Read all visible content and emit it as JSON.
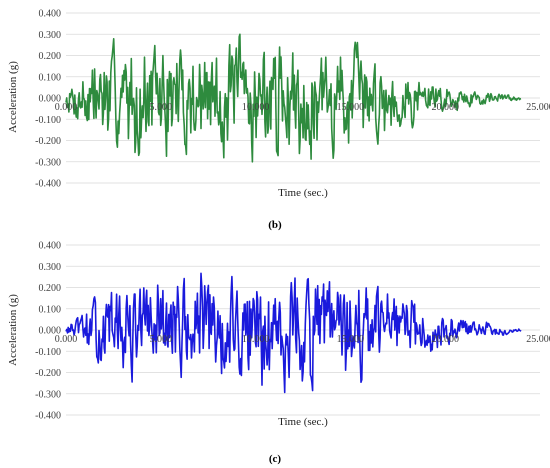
{
  "chart_data": [
    {
      "type": "line",
      "panel_label": "(b)",
      "xlabel": "Time (sec.)",
      "ylabel": "Acceleration (g)",
      "xlim": [
        0,
        25
      ],
      "ylim": [
        -0.4,
        0.4
      ],
      "x_ticks": [
        "0.000",
        "5.000",
        "10.000",
        "15.000",
        "20.000",
        "25.000"
      ],
      "y_ticks": [
        "0.400",
        "0.300",
        "0.200",
        "0.100",
        "0.000",
        "-0.100",
        "-0.200",
        "-0.300",
        "-0.400"
      ],
      "grid": "horizontal",
      "color": "#2e8b3e",
      "duration": 24,
      "envelope": [
        [
          0,
          0.05
        ],
        [
          1.5,
          0.27
        ],
        [
          5,
          0.3
        ],
        [
          10,
          0.3
        ],
        [
          15,
          0.28
        ],
        [
          18,
          0.15
        ],
        [
          20.5,
          0.06
        ],
        [
          24,
          0.01
        ]
      ],
      "seed": 7
    },
    {
      "type": "line",
      "panel_label": "(c)",
      "xlabel": "Time (sec.)",
      "ylabel": "Acceleration (g)",
      "xlim": [
        0,
        25
      ],
      "ylim": [
        -0.4,
        0.4
      ],
      "x_ticks": [
        "0.000",
        "5.000",
        "10.000",
        "15.000",
        "20.000",
        "25.000"
      ],
      "y_ticks": [
        "0.400",
        "0.300",
        "0.200",
        "0.100",
        "0.000",
        "-0.100",
        "-0.200",
        "-0.300",
        "-0.400"
      ],
      "grid": "horizontal",
      "color": "#1a1adc",
      "duration": 24,
      "envelope": [
        [
          0,
          0.02
        ],
        [
          2,
          0.2
        ],
        [
          4,
          0.27
        ],
        [
          10,
          0.3
        ],
        [
          15,
          0.28
        ],
        [
          18,
          0.17
        ],
        [
          21,
          0.06
        ],
        [
          24,
          0.01
        ]
      ],
      "seed": 13
    }
  ]
}
